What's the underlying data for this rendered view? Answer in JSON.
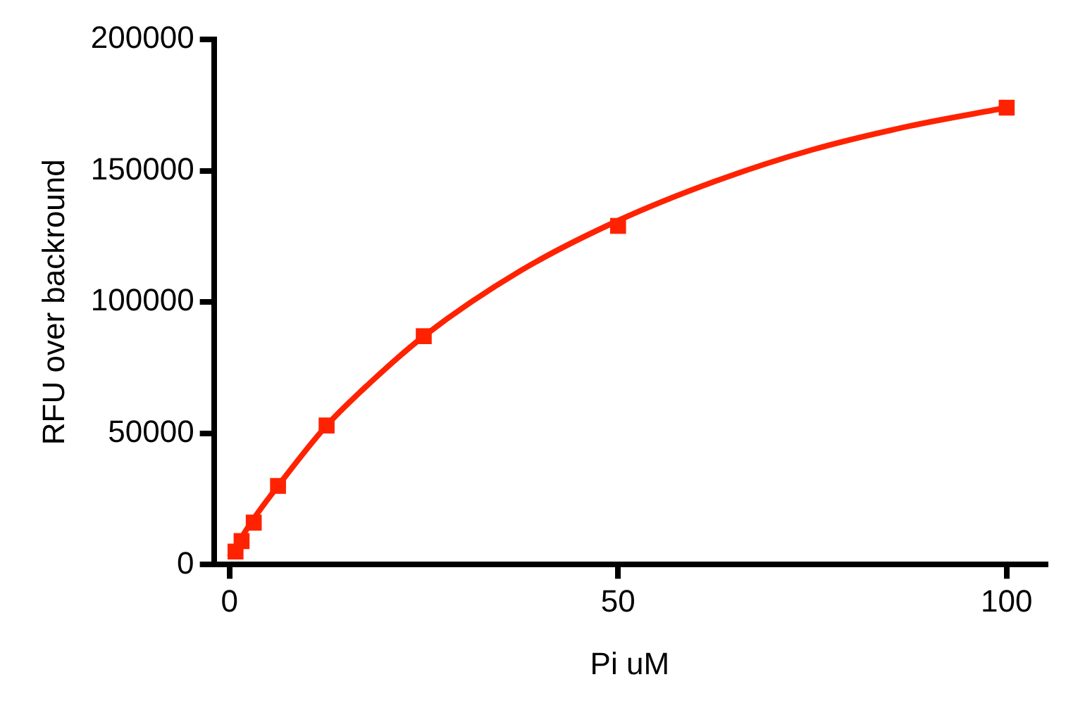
{
  "chart_data": {
    "type": "scatter",
    "xlabel": "Pi uM",
    "ylabel": "RFU over backround",
    "xlim": [
      -2,
      105
    ],
    "ylim": [
      0,
      200000
    ],
    "xticks": [
      0,
      50,
      100
    ],
    "yticks": [
      0,
      50000,
      100000,
      150000,
      200000
    ],
    "grid": false,
    "legend": false,
    "marker": "square",
    "series": [
      {
        "type": "scatter",
        "color": "#ff2200",
        "x": [
          0.78,
          1.56,
          3.125,
          6.25,
          12.5,
          25,
          50,
          100
        ],
        "values": [
          5000,
          9000,
          16000,
          30000,
          53000,
          87000,
          129000,
          174000
        ]
      },
      {
        "type": "line",
        "color": "#ff2200",
        "marker": "none",
        "line_style": "solid",
        "x": [
          0,
          3,
          6.25,
          12.5,
          18,
          25,
          37.5,
          50,
          62.5,
          75,
          87.5,
          100
        ],
        "values": [
          3000,
          17000,
          30000,
          53000,
          69000,
          87000,
          112000,
          131000,
          146000,
          158000,
          167000,
          174000
        ]
      }
    ]
  }
}
